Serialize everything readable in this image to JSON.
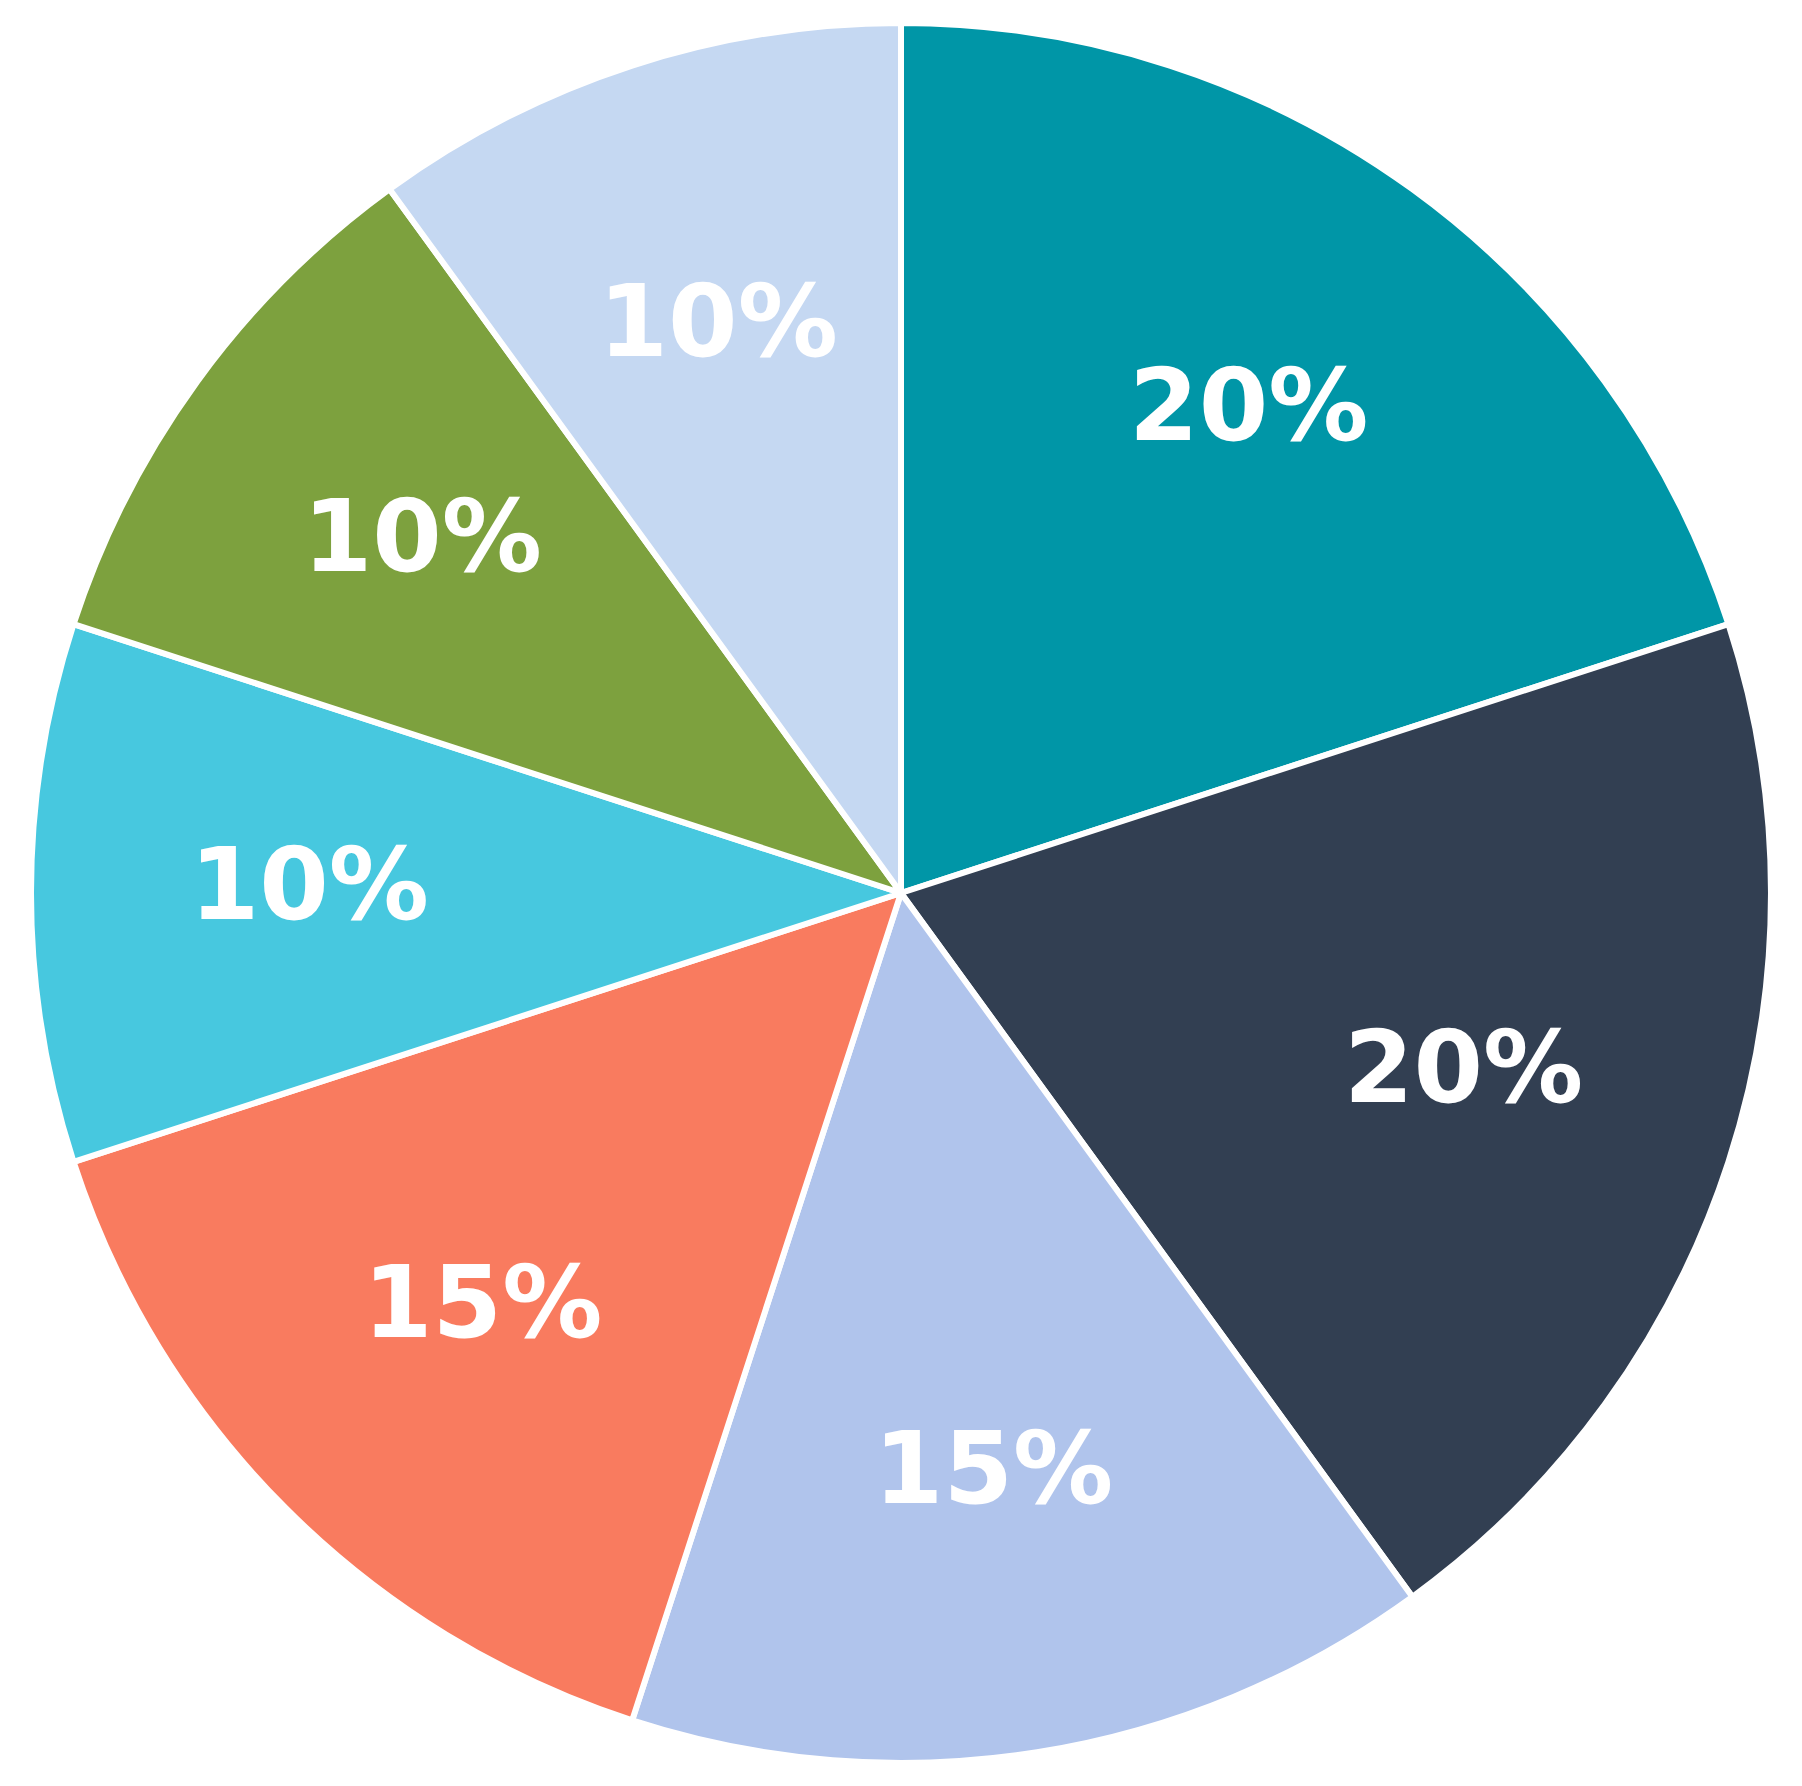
{
  "chart_data": {
    "type": "pie",
    "categories": [
      null,
      null,
      null,
      null,
      null,
      null,
      null
    ],
    "values": [
      20,
      20,
      15,
      15,
      10,
      10,
      10
    ],
    "colors": [
      "#0096a7",
      "#323f52",
      "#b0c4ec",
      "#f97b5f",
      "#47c8df",
      "#7da13e",
      "#c5d8f2"
    ],
    "value_labels": [
      "20%",
      "20%",
      "15%",
      "15%",
      "10%",
      "10%",
      "10%"
    ],
    "legend": false
  }
}
